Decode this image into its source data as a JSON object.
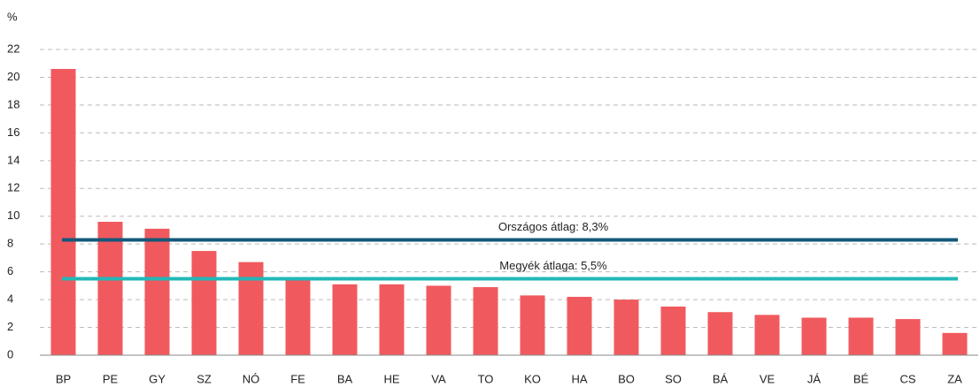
{
  "chart_data": {
    "type": "bar",
    "y_unit": "%",
    "categories": [
      "BP",
      "PE",
      "GY",
      "SZ",
      "NÓ",
      "FE",
      "BA",
      "HE",
      "VA",
      "TO",
      "KO",
      "HA",
      "BO",
      "SO",
      "BÁ",
      "VE",
      "JÁ",
      "BÉ",
      "CS",
      "ZA"
    ],
    "values": [
      20.6,
      9.6,
      9.1,
      7.5,
      6.7,
      5.4,
      5.1,
      5.1,
      5.0,
      4.9,
      4.3,
      4.2,
      4.0,
      3.5,
      3.1,
      2.9,
      2.7,
      2.7,
      2.6,
      1.6
    ],
    "color": "#f05a5e",
    "ylim": [
      0,
      22
    ],
    "yticks": [
      0,
      2,
      4,
      6,
      8,
      10,
      12,
      14,
      16,
      18,
      20,
      22
    ],
    "grid": true,
    "reference_lines": [
      {
        "value": 8.3,
        "label": "Országos átlag: 8,3%",
        "color": "#14587a"
      },
      {
        "value": 5.5,
        "label": "Megyék átlaga: 5,5%",
        "color": "#22b8b8"
      }
    ]
  }
}
